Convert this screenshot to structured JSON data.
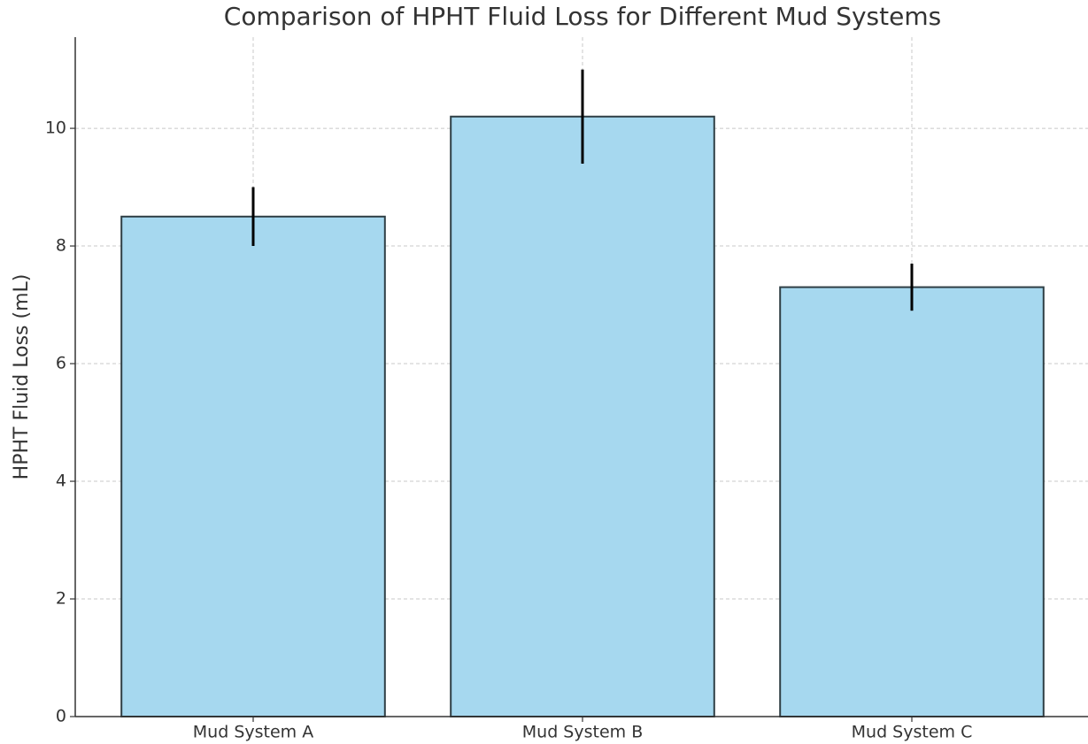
{
  "chart_data": {
    "type": "bar",
    "title": "Comparison of HPHT Fluid Loss for Different Mud Systems",
    "y_label": "HPHT Fluid Loss (mL)",
    "categories": [
      "Mud System A",
      "Mud System B",
      "Mud System C"
    ],
    "values": [
      8.5,
      10.2,
      7.3
    ],
    "errors": [
      0.5,
      0.8,
      0.4
    ],
    "color": "#a6d8ef",
    "edge_color": "#2f3f45",
    "ylim": [
      0,
      11.55
    ],
    "yticks": [
      0,
      2,
      4,
      6,
      8,
      10
    ],
    "grid": true
  }
}
